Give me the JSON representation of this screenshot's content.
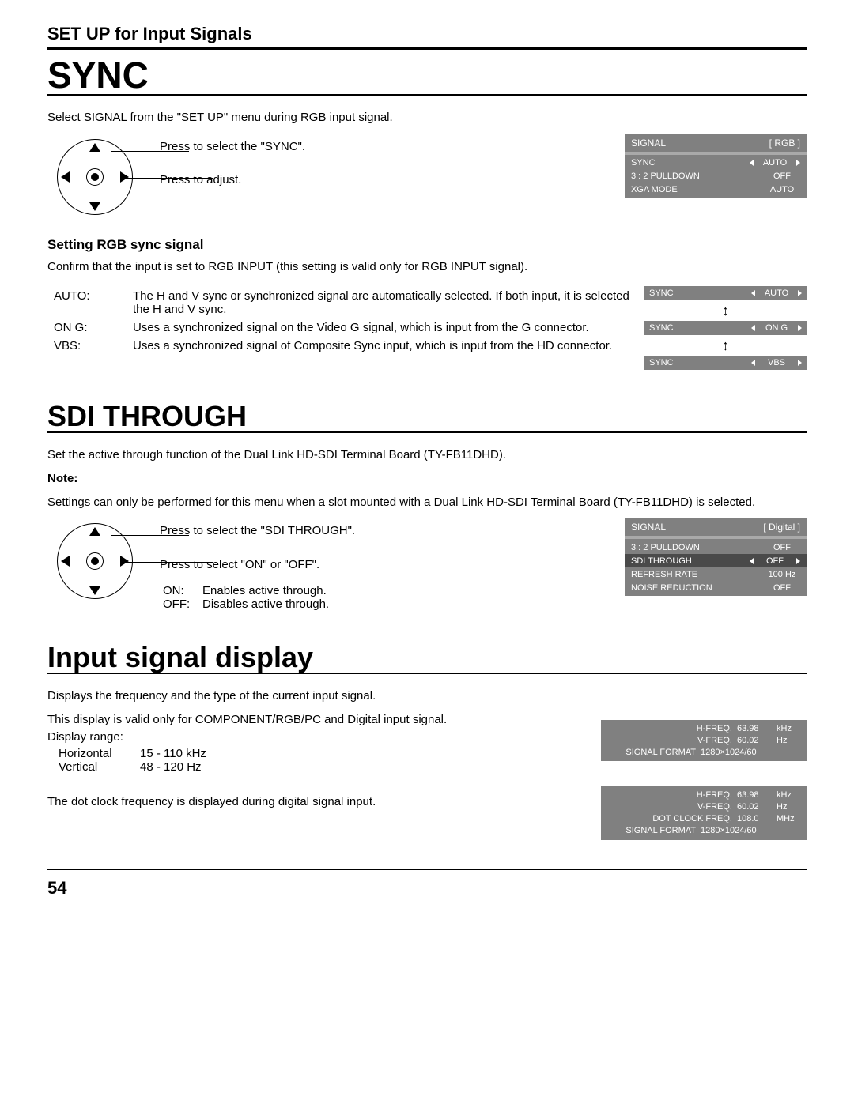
{
  "header": "SET UP for Input Signals",
  "sync": {
    "title": "SYNC",
    "intro": "Select SIGNAL from the \"SET UP\" menu during RGB input signal.",
    "instr1": "Press to select the \"SYNC\".",
    "instr2": "Press to adjust.",
    "sub": "Setting RGB sync signal",
    "sub_body": "Confirm that the input is set to RGB INPUT (this setting is valid only for RGB INPUT signal).",
    "defs": {
      "auto_k": "AUTO:",
      "auto_v": "The H and V sync or synchronized signal are automatically selected. If both input, it is selected the H and V sync.",
      "ong_k": "ON G:",
      "ong_v": "Uses a synchronized signal on the Video G signal, which is input from the G connector.",
      "vbs_k": "VBS:",
      "vbs_v": "Uses a synchronized signal of Composite Sync input, which is input from the HD connector."
    },
    "osd": {
      "hdr_l": "SIGNAL",
      "hdr_r": "[ RGB ]",
      "rows": [
        {
          "l": "SYNC",
          "v": "AUTO",
          "sel": false,
          "arrows": true
        },
        {
          "l": "3 : 2 PULLDOWN",
          "v": "OFF",
          "sel": false,
          "arrows": false
        },
        {
          "l": "XGA MODE",
          "v": "AUTO",
          "sel": false,
          "arrows": false
        }
      ]
    },
    "strips": [
      {
        "l": "SYNC",
        "v": "AUTO"
      },
      {
        "l": "SYNC",
        "v": "ON G"
      },
      {
        "l": "SYNC",
        "v": "VBS"
      }
    ]
  },
  "sdi": {
    "title": "SDI THROUGH",
    "intro": "Set the active through function of the Dual Link HD-SDI Terminal Board (TY-FB11DHD).",
    "note_label": "Note:",
    "note_body": "Settings can only be performed for this menu when a slot mounted with a Dual Link HD-SDI Terminal Board (TY-FB11DHD) is selected.",
    "instr1": "Press to select the \"SDI THROUGH\".",
    "instr2": "Press to select \"ON\" or \"OFF\".",
    "on_k": "ON:",
    "on_v": "Enables active through.",
    "off_k": "OFF:",
    "off_v": "Disables active through.",
    "osd": {
      "hdr_l": "SIGNAL",
      "hdr_r": "[ Digital ]",
      "rows": [
        {
          "l": "3 : 2 PULLDOWN",
          "v": "OFF",
          "sel": false,
          "arrows": false
        },
        {
          "l": "SDI THROUGH",
          "v": "OFF",
          "sel": true,
          "arrows": true
        },
        {
          "l": "REFRESH RATE",
          "v": "100 Hz",
          "sel": false,
          "arrows": false
        },
        {
          "l": "NOISE REDUCTION",
          "v": "OFF",
          "sel": false,
          "arrows": false
        }
      ]
    }
  },
  "isd": {
    "title": "Input signal display",
    "p1": "Displays the frequency and the type of the current input signal.",
    "p2": "This display is valid only for COMPONENT/RGB/PC and Digital input signal.",
    "range_label": "Display range:",
    "h_k": "Horizontal",
    "h_v": "15 - 110 kHz",
    "v_k": "Vertical",
    "v_v": "48 - 120 Hz",
    "p3": "The dot clock frequency is displayed during digital signal input.",
    "box1": [
      {
        "lbl": "H-FREQ.",
        "val": "63.98",
        "unit": "kHz"
      },
      {
        "lbl": "V-FREQ.",
        "val": "60.02",
        "unit": "Hz"
      },
      {
        "lbl": "SIGNAL FORMAT",
        "val": "1280×1024/60",
        "unit": ""
      }
    ],
    "box2": [
      {
        "lbl": "H-FREQ.",
        "val": "63.98",
        "unit": "kHz"
      },
      {
        "lbl": "V-FREQ.",
        "val": "60.02",
        "unit": "Hz"
      },
      {
        "lbl": "DOT CLOCK FREQ.",
        "val": "108.0",
        "unit": "MHz"
      },
      {
        "lbl": "SIGNAL FORMAT",
        "val": "1280×1024/60",
        "unit": ""
      }
    ]
  },
  "page_number": "54"
}
